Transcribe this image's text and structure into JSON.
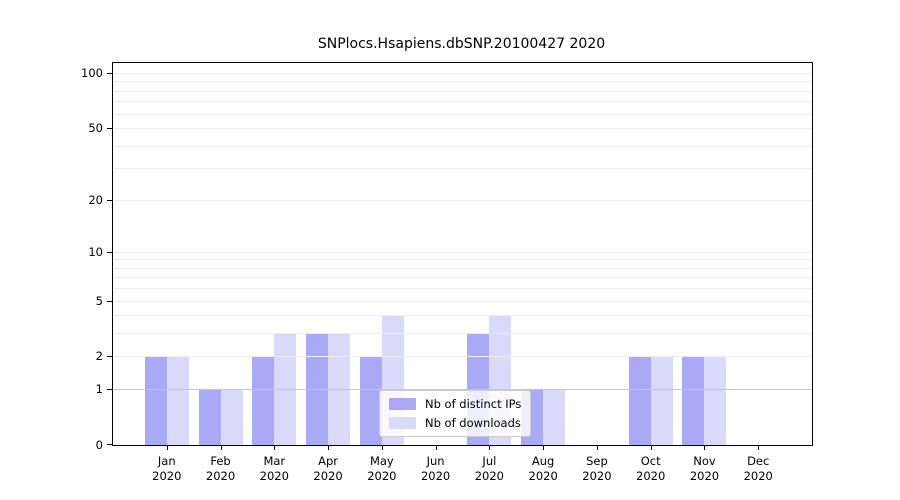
{
  "chart_data": {
    "type": "bar",
    "title": "SNPlocs.Hsapiens.dbSNP.20100427 2020",
    "yscale": "log1p",
    "categories": [
      "Jan\n2020",
      "Feb\n2020",
      "Mar\n2020",
      "Apr\n2020",
      "May\n2020",
      "Jun\n2020",
      "Jul\n2020",
      "Aug\n2020",
      "Sep\n2020",
      "Oct\n2020",
      "Nov\n2020",
      "Dec\n2020"
    ],
    "series": [
      {
        "name": "Nb of distinct IPs",
        "color": "#a9a9f5",
        "values": [
          2,
          1,
          2,
          3,
          2,
          0,
          3,
          1,
          0,
          2,
          2,
          0
        ]
      },
      {
        "name": "Nb of downloads",
        "color": "#d9d9f9",
        "values": [
          2,
          1,
          3,
          3,
          4,
          0,
          4,
          1,
          0,
          2,
          2,
          0
        ]
      }
    ],
    "xlabel": "",
    "ylabel": "",
    "ylim": [
      0,
      115
    ],
    "yticks": [
      {
        "label": "100",
        "value": 100
      },
      {
        "label": "50",
        "value": 50
      },
      {
        "label": "20",
        "value": 20
      },
      {
        "label": "10",
        "value": 10
      },
      {
        "label": "5",
        "value": 5
      },
      {
        "label": "2",
        "value": 2
      },
      {
        "label": "1",
        "value": 1
      },
      {
        "label": "0",
        "value": 0
      }
    ],
    "grid": true,
    "minor_grid_values": [
      2,
      3,
      4,
      5,
      6,
      7,
      8,
      9,
      10,
      20,
      30,
      40,
      50,
      60,
      70,
      80,
      90,
      100
    ],
    "emphasized_grid_value": 1,
    "legend_position": "lower center"
  },
  "colors": {
    "background": "#ffffff",
    "bar_distinct_ips": "#a9a9f5",
    "bar_downloads": "#d9d9f9",
    "grid_minor": "#ededed",
    "grid_emphasis": "#c6c6c6",
    "spine": "#000000",
    "text": "#000000",
    "legend_border": "#cccccc",
    "legend_bg": "rgba(255,255,255,0.8)"
  }
}
